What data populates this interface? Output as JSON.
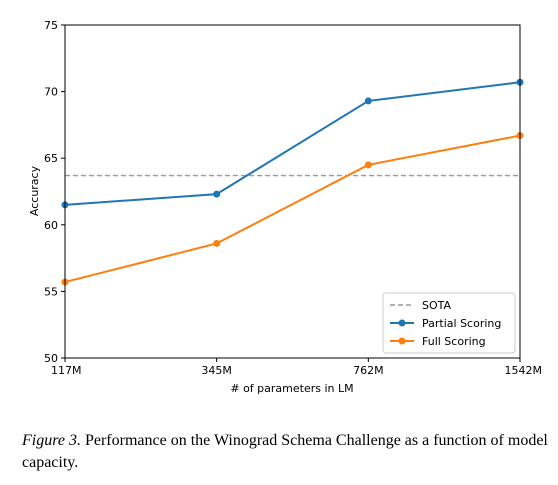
{
  "chart_data": {
    "type": "line",
    "xlabel": "# of parameters in LM",
    "ylabel": "Accuracy",
    "categories": [
      "117M",
      "345M",
      "762M",
      "1542M"
    ],
    "ylim": [
      50,
      75
    ],
    "yticks": [
      50,
      55,
      60,
      65,
      70,
      75
    ],
    "grid": false,
    "legend_position": "bottom-right",
    "reference_line": {
      "name": "SOTA",
      "value": 63.7,
      "color": "#999999",
      "style": "dashed"
    },
    "series": [
      {
        "name": "Partial Scoring",
        "color": "#1f77b4",
        "values": [
          61.5,
          62.3,
          69.3,
          70.7
        ]
      },
      {
        "name": "Full Scoring",
        "color": "#ff7f0e",
        "values": [
          55.7,
          58.6,
          64.5,
          66.7
        ]
      }
    ]
  },
  "caption": {
    "label": "Figure 3.",
    "text": " Performance on the Winograd Schema Challenge as a function of model capacity."
  }
}
